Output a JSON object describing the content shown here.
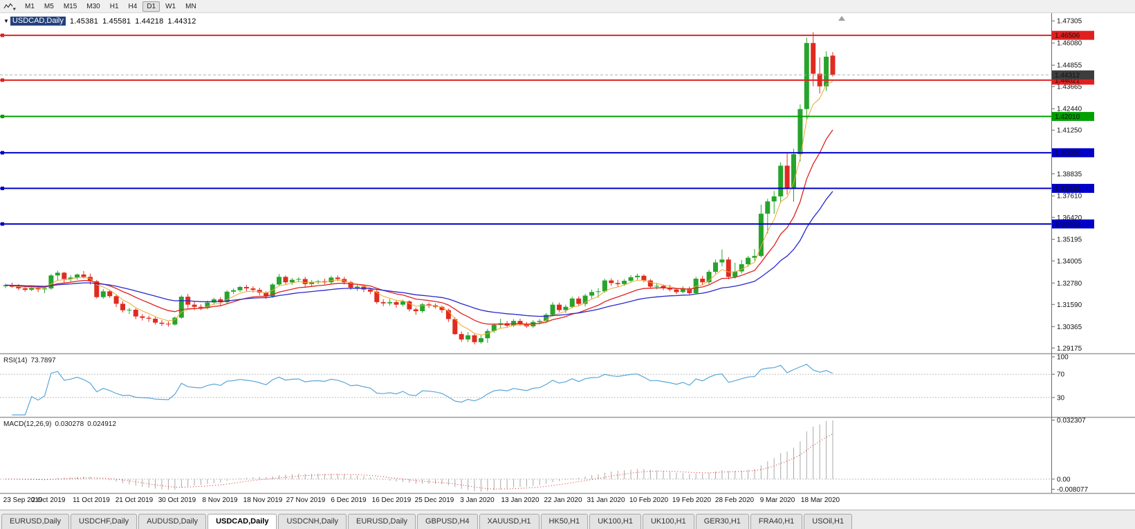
{
  "toolbar": {
    "timeframes": [
      "M1",
      "M5",
      "M15",
      "M30",
      "H1",
      "H4",
      "D1",
      "W1",
      "MN"
    ],
    "active": "D1"
  },
  "title": {
    "symbol": "USDCAD,Daily",
    "open": "1.45381",
    "high": "1.45581",
    "low": "1.44218",
    "close": "1.44312"
  },
  "rsi_panel": {
    "name": "RSI(14)",
    "value": "73.7897",
    "scale_labels": [
      {
        "text": "100",
        "value": 100
      },
      {
        "text": "70",
        "value": 70
      },
      {
        "text": "30",
        "value": 30
      }
    ]
  },
  "macd_panel": {
    "name": "MACD(12,26,9)",
    "value": "0.030278",
    "signal_value": "0.024912",
    "scale_top": "0.032307",
    "scale_zero": "0.00",
    "scale_bottom": "-0.008077"
  },
  "chart": {
    "price_axis_labels": [
      "1.47305",
      "1.46080",
      "1.44855",
      "1.43665",
      "1.42440",
      "1.41250",
      "1.40025",
      "1.38835",
      "1.37610",
      "1.36420",
      "1.35195",
      "1.34005",
      "1.32780",
      "1.31590",
      "1.30365",
      "1.29175"
    ],
    "date_labels": [
      "23 Sep 2019",
      "2 Oct 2019",
      "11 Oct 2019",
      "21 Oct 2019",
      "30 Oct 2019",
      "8 Nov 2019",
      "18 Nov 2019",
      "27 Nov 2019",
      "6 Dec 2019",
      "16 Dec 2019",
      "25 Dec 2019",
      "3 Jan 2020",
      "13 Jan 2020",
      "22 Jan 2020",
      "31 Jan 2020",
      "10 Feb 2020",
      "19 Feb 2020",
      "28 Feb 2020",
      "9 Mar 2020",
      "18 Mar 2020"
    ],
    "current_price_label": "1.44312"
  },
  "chart_data": {
    "type": "candlestick",
    "symbol": "USDCAD",
    "timeframe": "Daily",
    "last_bar": {
      "open": 1.45381,
      "high": 1.45581,
      "low": 1.44218,
      "close": 1.44312
    },
    "price_range": [
      1.29175,
      1.47305
    ],
    "bid": 1.44312,
    "colors": {
      "up": "#26a42c",
      "down": "#e02b20",
      "bid_line": "#b0b0b0",
      "hist": "#a9a9a9",
      "rsi": "#58a6d8"
    },
    "moving_averages": [
      {
        "name": "fast-ema",
        "period": 5,
        "color": "#efa72e",
        "width": 1
      },
      {
        "name": "mid-ema",
        "period": 13,
        "color": "#e02020",
        "width": 1.3
      },
      {
        "name": "slow-ema",
        "period": 30,
        "color": "#2727cc",
        "width": 1.3
      }
    ],
    "horizontal_levels": [
      {
        "price": 1.46506,
        "label": "1.46506",
        "color": "#e02020"
      },
      {
        "price": 1.44021,
        "label": "1.44021",
        "color": "#e02020"
      },
      {
        "price": 1.4201,
        "label": "1.42010",
        "color": "#009f00"
      },
      {
        "price": 1.4,
        "label": "1.40000",
        "color": "#0000c8"
      },
      {
        "price": 1.38026,
        "label": "1.38026",
        "color": "#0000c8"
      },
      {
        "price": 1.36052,
        "label": "1.36052",
        "color": "#0000c8"
      }
    ],
    "rsi": {
      "period": 14,
      "current": 73.7897,
      "levels": [
        70,
        30
      ]
    },
    "macd": {
      "fast": 12,
      "slow": 26,
      "signal": 9,
      "current": 0.030278,
      "signal_current": 0.024912,
      "scale_max": 0.032307,
      "scale_min": -0.008077
    },
    "ohlc": [
      [
        1.326,
        1.3275,
        1.325,
        1.3266
      ],
      [
        1.3266,
        1.328,
        1.3252,
        1.3257
      ],
      [
        1.3257,
        1.3272,
        1.3238,
        1.3248
      ],
      [
        1.3248,
        1.3262,
        1.323,
        1.324
      ],
      [
        1.324,
        1.326,
        1.3233,
        1.3252
      ],
      [
        1.3252,
        1.3258,
        1.3227,
        1.3243
      ],
      [
        1.3243,
        1.3252,
        1.3222,
        1.3248
      ],
      [
        1.3248,
        1.3328,
        1.324,
        1.332
      ],
      [
        1.332,
        1.3347,
        1.329,
        1.3335
      ],
      [
        1.3335,
        1.334,
        1.3281,
        1.33
      ],
      [
        1.33,
        1.3321,
        1.3285,
        1.3308
      ],
      [
        1.3308,
        1.333,
        1.3296,
        1.3325
      ],
      [
        1.3325,
        1.3345,
        1.3303,
        1.3312
      ],
      [
        1.3312,
        1.333,
        1.327,
        1.3288
      ],
      [
        1.3288,
        1.3295,
        1.3192,
        1.32
      ],
      [
        1.32,
        1.3245,
        1.319,
        1.3232
      ],
      [
        1.3232,
        1.324,
        1.3195,
        1.3205
      ],
      [
        1.3205,
        1.3212,
        1.3145,
        1.3163
      ],
      [
        1.3163,
        1.3178,
        1.3115,
        1.3127
      ],
      [
        1.3127,
        1.314,
        1.3106,
        1.313
      ],
      [
        1.313,
        1.3138,
        1.3078,
        1.3093
      ],
      [
        1.3093,
        1.3106,
        1.307,
        1.3085
      ],
      [
        1.3085,
        1.3098,
        1.3062,
        1.308
      ],
      [
        1.308,
        1.3089,
        1.3048,
        1.3058
      ],
      [
        1.3058,
        1.3072,
        1.304,
        1.3052
      ],
      [
        1.3052,
        1.3065,
        1.3036,
        1.3048
      ],
      [
        1.3048,
        1.3092,
        1.3042,
        1.3086
      ],
      [
        1.3086,
        1.321,
        1.308,
        1.3202
      ],
      [
        1.3202,
        1.3218,
        1.314,
        1.3158
      ],
      [
        1.3158,
        1.3175,
        1.3128,
        1.3146
      ],
      [
        1.3146,
        1.316,
        1.3128,
        1.314
      ],
      [
        1.314,
        1.318,
        1.3132,
        1.317
      ],
      [
        1.317,
        1.3196,
        1.3158,
        1.3188
      ],
      [
        1.3188,
        1.32,
        1.3152,
        1.3172
      ],
      [
        1.3172,
        1.3238,
        1.3165,
        1.323
      ],
      [
        1.323,
        1.3248,
        1.3216,
        1.3238
      ],
      [
        1.3238,
        1.3262,
        1.3228,
        1.3256
      ],
      [
        1.3256,
        1.3268,
        1.3232,
        1.3248
      ],
      [
        1.3248,
        1.326,
        1.3225,
        1.324
      ],
      [
        1.324,
        1.3252,
        1.321,
        1.3225
      ],
      [
        1.3225,
        1.3232,
        1.319,
        1.3205
      ],
      [
        1.3205,
        1.3278,
        1.3196,
        1.327
      ],
      [
        1.327,
        1.3328,
        1.3262,
        1.3312
      ],
      [
        1.3312,
        1.332,
        1.327,
        1.3282
      ],
      [
        1.3282,
        1.3306,
        1.3268,
        1.3296
      ],
      [
        1.3296,
        1.331,
        1.3282,
        1.33
      ],
      [
        1.33,
        1.3312,
        1.3258,
        1.3272
      ],
      [
        1.3272,
        1.3294,
        1.326,
        1.3284
      ],
      [
        1.3284,
        1.3296,
        1.3272,
        1.3288
      ],
      [
        1.3288,
        1.3302,
        1.327,
        1.3282
      ],
      [
        1.3282,
        1.3318,
        1.3272,
        1.3308
      ],
      [
        1.3308,
        1.332,
        1.3288,
        1.33
      ],
      [
        1.33,
        1.3312,
        1.327,
        1.3282
      ],
      [
        1.3282,
        1.329,
        1.324,
        1.3252
      ],
      [
        1.3252,
        1.327,
        1.3234,
        1.3258
      ],
      [
        1.3258,
        1.3268,
        1.3228,
        1.3242
      ],
      [
        1.3242,
        1.3252,
        1.3216,
        1.323
      ],
      [
        1.323,
        1.324,
        1.3162,
        1.3172
      ],
      [
        1.3172,
        1.3188,
        1.315,
        1.3165
      ],
      [
        1.3165,
        1.319,
        1.3152,
        1.3172
      ],
      [
        1.3172,
        1.318,
        1.3142,
        1.3158
      ],
      [
        1.3158,
        1.3186,
        1.3148,
        1.3176
      ],
      [
        1.3176,
        1.3182,
        1.312,
        1.3132
      ],
      [
        1.3132,
        1.3142,
        1.3102,
        1.3122
      ],
      [
        1.3122,
        1.3168,
        1.3112,
        1.316
      ],
      [
        1.316,
        1.317,
        1.314,
        1.3155
      ],
      [
        1.3155,
        1.3165,
        1.3136,
        1.3146
      ],
      [
        1.3146,
        1.3152,
        1.3112,
        1.3128
      ],
      [
        1.3128,
        1.3136,
        1.3062,
        1.3078
      ],
      [
        1.3078,
        1.3088,
        1.299,
        1.2995
      ],
      [
        1.2995,
        1.301,
        1.2952,
        1.2965
      ],
      [
        1.2965,
        1.3005,
        1.295,
        1.2988
      ],
      [
        1.2988,
        1.2996,
        1.2938,
        1.295
      ],
      [
        1.295,
        1.2988,
        1.2942,
        1.2972
      ],
      [
        1.2972,
        1.3024,
        1.2946,
        1.3012
      ],
      [
        1.3012,
        1.3054,
        1.3002,
        1.3046
      ],
      [
        1.3046,
        1.308,
        1.3028,
        1.3055
      ],
      [
        1.3055,
        1.3068,
        1.3032,
        1.3042
      ],
      [
        1.3042,
        1.3078,
        1.3034,
        1.3068
      ],
      [
        1.3068,
        1.308,
        1.304,
        1.3052
      ],
      [
        1.3052,
        1.3062,
        1.303,
        1.3038
      ],
      [
        1.3038,
        1.3072,
        1.303,
        1.3062
      ],
      [
        1.3062,
        1.3078,
        1.3048,
        1.3068
      ],
      [
        1.3068,
        1.3112,
        1.3056,
        1.3102
      ],
      [
        1.3102,
        1.3172,
        1.3092,
        1.3158
      ],
      [
        1.3158,
        1.317,
        1.3116,
        1.3128
      ],
      [
        1.3128,
        1.3158,
        1.3112,
        1.3146
      ],
      [
        1.3146,
        1.3202,
        1.3138,
        1.3192
      ],
      [
        1.3192,
        1.3204,
        1.3152,
        1.3162
      ],
      [
        1.3162,
        1.3218,
        1.3148,
        1.3208
      ],
      [
        1.3208,
        1.3242,
        1.3192,
        1.3228
      ],
      [
        1.3228,
        1.325,
        1.3196,
        1.3232
      ],
      [
        1.3232,
        1.3302,
        1.3224,
        1.3292
      ],
      [
        1.3292,
        1.3304,
        1.3262,
        1.3278
      ],
      [
        1.3278,
        1.3296,
        1.3258,
        1.3272
      ],
      [
        1.3272,
        1.33,
        1.3262,
        1.329
      ],
      [
        1.329,
        1.3322,
        1.328,
        1.331
      ],
      [
        1.331,
        1.333,
        1.3296,
        1.3318
      ],
      [
        1.3318,
        1.3326,
        1.3282,
        1.3292
      ],
      [
        1.3292,
        1.33,
        1.3246,
        1.3258
      ],
      [
        1.3258,
        1.3278,
        1.3242,
        1.3262
      ],
      [
        1.3262,
        1.327,
        1.3238,
        1.3252
      ],
      [
        1.3252,
        1.3268,
        1.3232,
        1.3242
      ],
      [
        1.3242,
        1.3252,
        1.3216,
        1.3228
      ],
      [
        1.3228,
        1.326,
        1.322,
        1.3248
      ],
      [
        1.3248,
        1.3258,
        1.3212,
        1.3222
      ],
      [
        1.3222,
        1.3312,
        1.3218,
        1.3302
      ],
      [
        1.3302,
        1.3318,
        1.3268,
        1.3282
      ],
      [
        1.3282,
        1.3352,
        1.3272,
        1.334
      ],
      [
        1.334,
        1.3408,
        1.333,
        1.3392
      ],
      [
        1.3392,
        1.3464,
        1.337,
        1.3408
      ],
      [
        1.3408,
        1.3422,
        1.3298,
        1.3312
      ],
      [
        1.3312,
        1.339,
        1.3302,
        1.3342
      ],
      [
        1.3342,
        1.3406,
        1.333,
        1.3382
      ],
      [
        1.3382,
        1.3428,
        1.3368,
        1.3418
      ],
      [
        1.3418,
        1.3466,
        1.3402,
        1.3428
      ],
      [
        1.3428,
        1.3712,
        1.342,
        1.3662
      ],
      [
        1.3662,
        1.3745,
        1.3552,
        1.373
      ],
      [
        1.373,
        1.3788,
        1.3662,
        1.3758
      ],
      [
        1.3758,
        1.3946,
        1.3722,
        1.3928
      ],
      [
        1.3928,
        1.3996,
        1.3768,
        1.3802
      ],
      [
        1.3802,
        1.4022,
        1.3728,
        1.3992
      ],
      [
        1.3992,
        1.4268,
        1.3952,
        1.4242
      ],
      [
        1.4242,
        1.4638,
        1.4182,
        1.4608
      ],
      [
        1.4608,
        1.4668,
        1.4368,
        1.4438
      ],
      [
        1.4438,
        1.4528,
        1.4328,
        1.4368
      ],
      [
        1.4368,
        1.4562,
        1.4342,
        1.4532
      ],
      [
        1.45381,
        1.45581,
        1.44218,
        1.44312
      ]
    ]
  },
  "tabs": [
    {
      "label": "EURUSD,Daily",
      "active": false
    },
    {
      "label": "USDCHF,Daily",
      "active": false
    },
    {
      "label": "AUDUSD,Daily",
      "active": false
    },
    {
      "label": "USDCAD,Daily",
      "active": true
    },
    {
      "label": "USDCNH,Daily",
      "active": false
    },
    {
      "label": "EURUSD,Daily",
      "active": false
    },
    {
      "label": "GBPUSD,H4",
      "active": false
    },
    {
      "label": "XAUUSD,H1",
      "active": false
    },
    {
      "label": "HK50,H1",
      "active": false
    },
    {
      "label": "UK100,H1",
      "active": false
    },
    {
      "label": "UK100,H1",
      "active": false
    },
    {
      "label": "GER30,H1",
      "active": false
    },
    {
      "label": "FRA40,H1",
      "active": false
    },
    {
      "label": "USOil,H1",
      "active": false
    }
  ]
}
